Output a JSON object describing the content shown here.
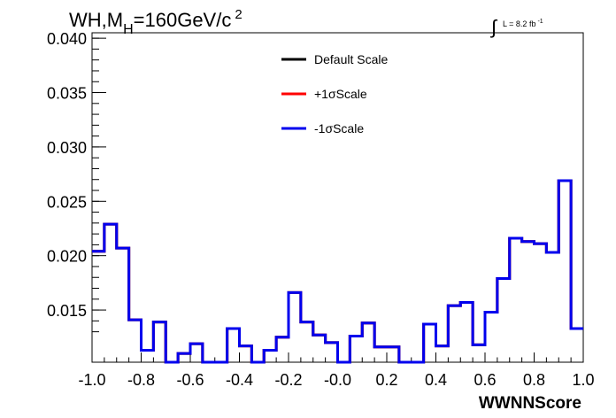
{
  "title": {
    "prefix": "WH,M",
    "subscript": "H",
    "rest": "=160GeV/c",
    "superscript": "2"
  },
  "lumi": {
    "integral_symbol": "∫",
    "text": "L = 8.2 fb",
    "superscript": "-1"
  },
  "chart_data": {
    "type": "line",
    "xlabel": "WWNNScore",
    "ylabel": "",
    "xlim": [
      -1.0,
      1.0
    ],
    "ylim": [
      0.0102,
      0.0405
    ],
    "x_ticks": [
      "-1.0",
      "-0.8",
      "-0.6",
      "-0.4",
      "-0.2",
      "-0.0",
      "0.2",
      "0.4",
      "0.6",
      "0.8",
      "1.0"
    ],
    "y_ticks": [
      "0.015",
      "0.020",
      "0.025",
      "0.030",
      "0.035",
      "0.040"
    ],
    "bin_edges": [
      -1.0,
      -0.95,
      -0.9,
      -0.85,
      -0.8,
      -0.75,
      -0.7,
      -0.65,
      -0.6,
      -0.55,
      -0.5,
      -0.45,
      -0.4,
      -0.35,
      -0.3,
      -0.25,
      -0.2,
      -0.15,
      -0.1,
      -0.05,
      0.0,
      0.05,
      0.1,
      0.15,
      0.2,
      0.25,
      0.3,
      0.35,
      0.4,
      0.45,
      0.5,
      0.55,
      0.6,
      0.65,
      0.7,
      0.75,
      0.8,
      0.85,
      0.9,
      0.95,
      1.0
    ],
    "legend_position": "top-center",
    "series": [
      {
        "name": "Default Scale",
        "color": "#000000",
        "values": [
          0.0204,
          0.0229,
          0.0207,
          0.0141,
          0.0113,
          0.0139,
          0.0102,
          0.011,
          0.0119,
          0.0102,
          0.0102,
          0.0133,
          0.0117,
          0.0102,
          0.0113,
          0.0125,
          0.0166,
          0.0139,
          0.0127,
          0.012,
          0.0102,
          0.0126,
          0.0138,
          0.0116,
          0.0116,
          0.0102,
          0.0102,
          0.0137,
          0.0117,
          0.0154,
          0.0157,
          0.0118,
          0.0148,
          0.0179,
          0.0216,
          0.0213,
          0.0211,
          0.0203,
          0.0269,
          0.0133
        ]
      },
      {
        "name": "+1σScale",
        "color": "#ff0000",
        "values": [
          0.0204,
          0.0229,
          0.0207,
          0.0141,
          0.0113,
          0.0139,
          0.0102,
          0.011,
          0.0119,
          0.0102,
          0.0102,
          0.0133,
          0.0117,
          0.0102,
          0.0113,
          0.0125,
          0.0166,
          0.0139,
          0.0127,
          0.012,
          0.0102,
          0.0126,
          0.0138,
          0.0116,
          0.0116,
          0.0102,
          0.0102,
          0.0137,
          0.0117,
          0.0154,
          0.0157,
          0.0118,
          0.0148,
          0.0179,
          0.0216,
          0.0213,
          0.0211,
          0.0203,
          0.0269,
          0.0133
        ]
      },
      {
        "name": "-1σScale",
        "color": "#0000ee",
        "values": [
          0.0204,
          0.0229,
          0.0207,
          0.0141,
          0.0113,
          0.0139,
          0.0102,
          0.011,
          0.0119,
          0.0102,
          0.0102,
          0.0133,
          0.0117,
          0.0102,
          0.0113,
          0.0125,
          0.0166,
          0.0139,
          0.0127,
          0.012,
          0.0102,
          0.0126,
          0.0138,
          0.0116,
          0.0116,
          0.0102,
          0.0102,
          0.0137,
          0.0117,
          0.0154,
          0.0157,
          0.0118,
          0.0148,
          0.0179,
          0.0216,
          0.0213,
          0.0211,
          0.0203,
          0.0269,
          0.0133
        ]
      }
    ]
  }
}
